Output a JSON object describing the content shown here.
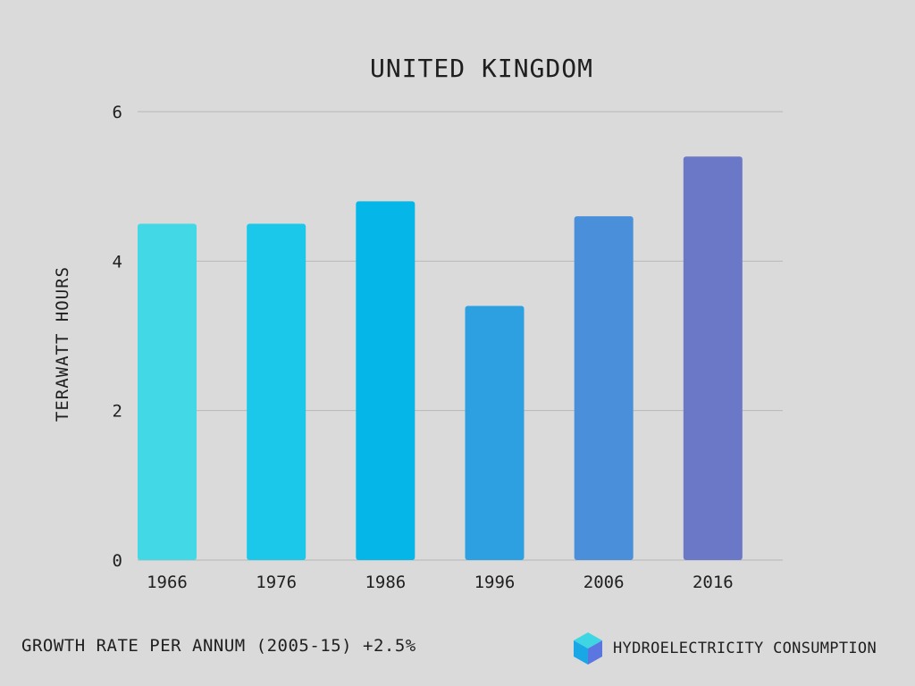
{
  "chart_data": {
    "type": "bar",
    "title": "UNITED KINGDOM",
    "ylabel": "TERAWATT HOURS",
    "xlabel": "",
    "categories": [
      "1966",
      "1976",
      "1986",
      "1996",
      "2006",
      "2016"
    ],
    "values": [
      4.5,
      4.5,
      4.8,
      3.4,
      4.6,
      5.4
    ],
    "ylim": [
      0,
      6
    ],
    "yticks": [
      "0",
      "2",
      "4",
      "6"
    ],
    "grid": true,
    "colors": [
      "#43d8e6",
      "#1cc8ea",
      "#04b7e8",
      "#2da0e2",
      "#4a8fda",
      "#6b77c7"
    ],
    "grid_color": "#b7b7b7"
  },
  "footer": {
    "growth_note": "GROWTH RATE PER ANNUM (2005-15) +2.5%",
    "legend_label": "HYDROELECTRICITY CONSUMPTION",
    "legend_icon": "cube-icon"
  }
}
